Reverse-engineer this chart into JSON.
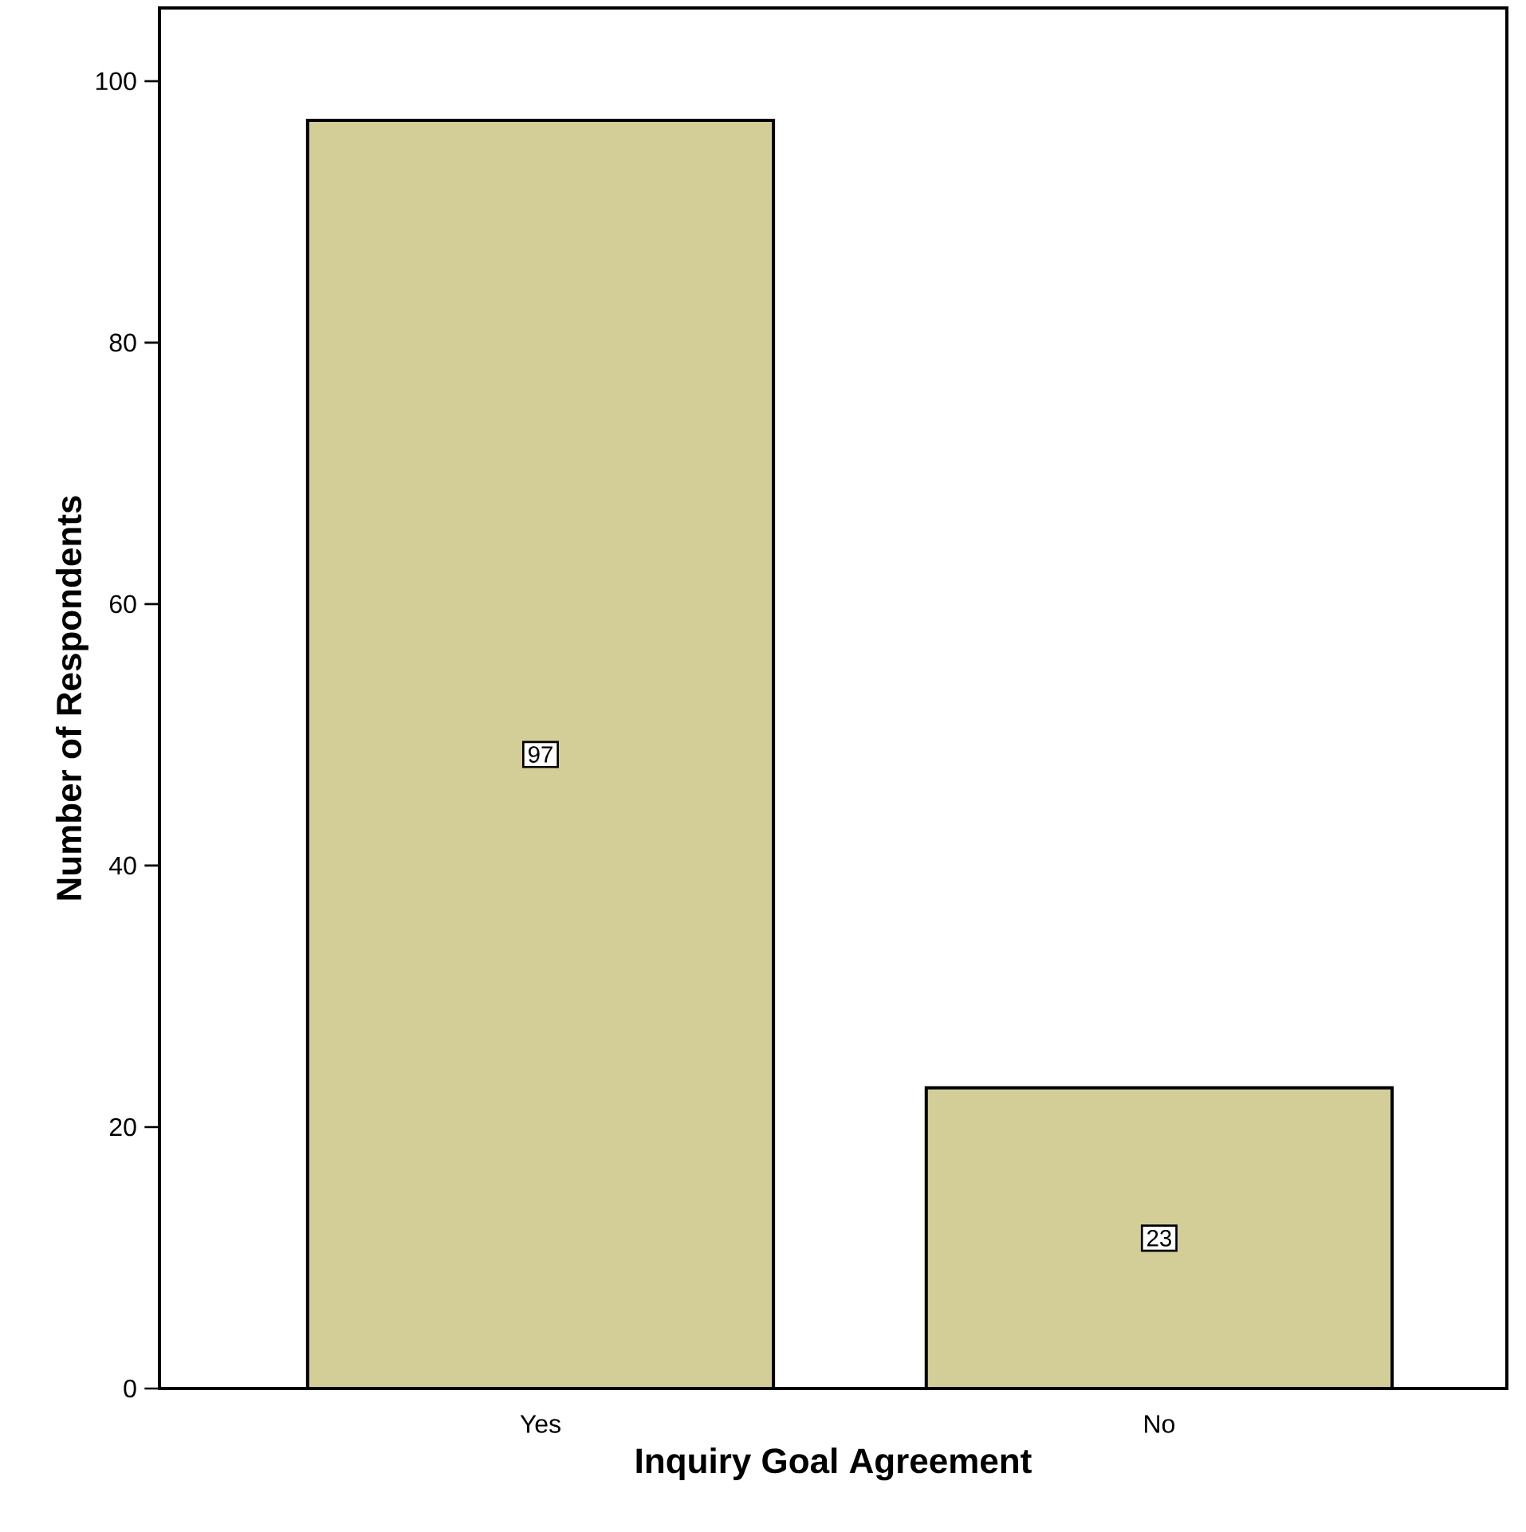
{
  "chart_data": {
    "type": "bar",
    "xlabel": "Inquiry Goal Agreement",
    "ylabel": "Number of Respondents",
    "categories": [
      "Yes",
      "No"
    ],
    "values": [
      97,
      23
    ],
    "color": "#d3ce98",
    "ylim": [
      0,
      105.6
    ],
    "yticks": [
      0,
      20,
      40,
      60,
      80,
      100
    ],
    "data_labels": true,
    "grid": false
  }
}
